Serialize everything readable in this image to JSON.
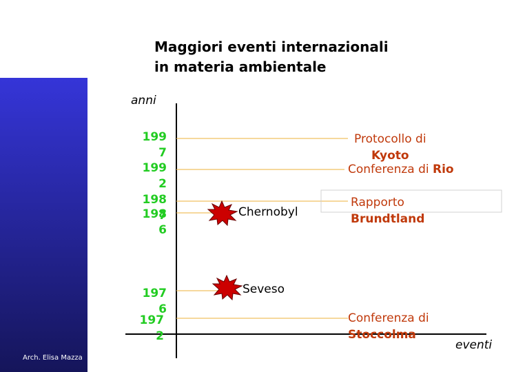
{
  "title": [
    "Maggiori eventi internazionali",
    "in materia ambientale"
  ],
  "axis": {
    "y_label": "anni",
    "x_label": "eventi"
  },
  "years": [
    "1997",
    "1992",
    "1987",
    "1986",
    "1976",
    "1972"
  ],
  "events": [
    {
      "text": "Protocollo di",
      "bold": "Kyoto"
    },
    {
      "text": "Conferenza di",
      "bold": "Rio"
    },
    {
      "text": "Rapporto",
      "bold": "Brundtland"
    },
    {
      "text": "Conferenza di",
      "bold": "Stoccolma"
    }
  ],
  "incidents": [
    "Chernobyl",
    "Seveso"
  ],
  "footer": "Arch. Elisa Mazza"
}
